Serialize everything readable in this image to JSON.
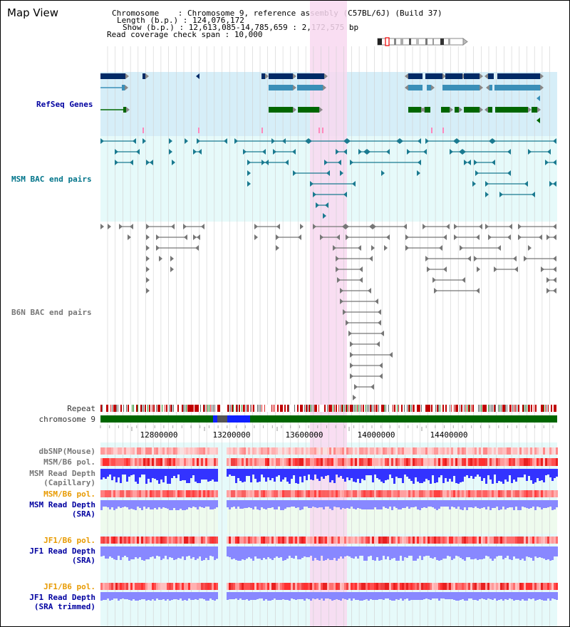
{
  "page": {
    "title": "Map View"
  },
  "header": {
    "chromosome_label": "Chromosome    : ",
    "chromosome_value": "Chromosome 9, reference assembly (C57BL/6J) (Build 37)",
    "length_label": "Length (b.p.) : ",
    "length_value": "124,076,172",
    "show_label": "Show (b.p.) : ",
    "show_value": "12,613,085-14,785,659 : 2,172,575 bp",
    "span_label": "Read coverage check span : ",
    "span_value": "10,000"
  },
  "tracks": {
    "refseq": "RefSeq Genes",
    "msm_bac": "MSM BAC end pairs",
    "b6n_bac": "B6N BAC end pairs",
    "repeat": "Repeat",
    "chromosome": "chromosome 9",
    "dbsnp": "dbSNP(Mouse)",
    "msm_b6_pol_1": "MSM/B6 pol.",
    "msm_read_depth_cap_1": "MSM Read Depth",
    "msm_read_depth_cap_2": "(Capillary)",
    "msm_b6_pol_2": "MSM/B6 pol.",
    "msm_read_depth_sra_1": "MSM Read Depth",
    "msm_read_depth_sra_2": "(SRA)",
    "jf1_b6_pol_1": "JF1/B6 pol.",
    "jf1_read_depth_1": "JF1 Read Depth",
    "jf1_read_depth_2": "(SRA)",
    "jf1_b6_pol_2": "JF1/B6 pol.",
    "jf1_read_depth_trim_1": "JF1 Read Depth",
    "jf1_read_depth_trim_2": "(SRA trimmed)"
  },
  "axis": {
    "ticks": [
      "12800000",
      "13200000",
      "13600000",
      "14000000",
      "14400000"
    ]
  },
  "colors": {
    "refseq_bg": "#d6eef8",
    "bac_bg": "#e6fafa",
    "highlight": "#f8d8f0",
    "gene_navy": "#002a66",
    "gene_light": "#3a8fb8",
    "gene_green": "#006600",
    "chrom_green": "#006600",
    "depth_blue": "#3333ff",
    "depth_light": "#8888ff"
  }
}
